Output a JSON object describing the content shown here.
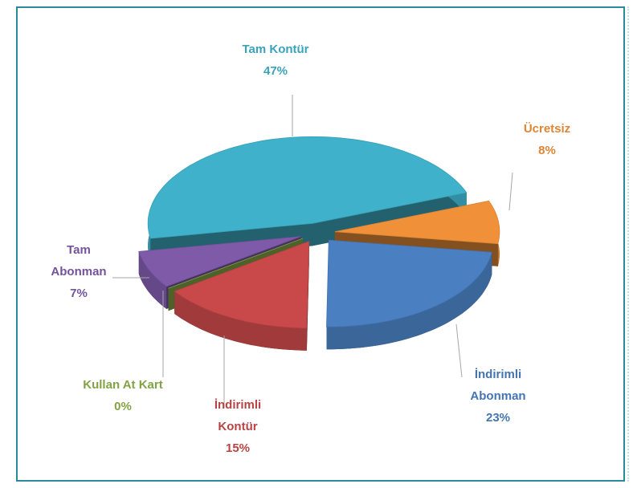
{
  "chart_data": {
    "type": "pie",
    "categories": [
      "Tam Kontür",
      "Ücretsiz",
      "İndirimli Abonman",
      "İndirimli Kontür",
      "Kullan At Kart",
      "Tam Abonman"
    ],
    "values": [
      47,
      8,
      23,
      15,
      0,
      7
    ],
    "value_labels": [
      "47%",
      "8%",
      "23%",
      "15%",
      "0%",
      "7%"
    ],
    "colors": [
      "#3fb1ca",
      "#f0913a",
      "#4a7fc1",
      "#c9494a",
      "#8db14a",
      "#7e5aa9"
    ]
  }
}
